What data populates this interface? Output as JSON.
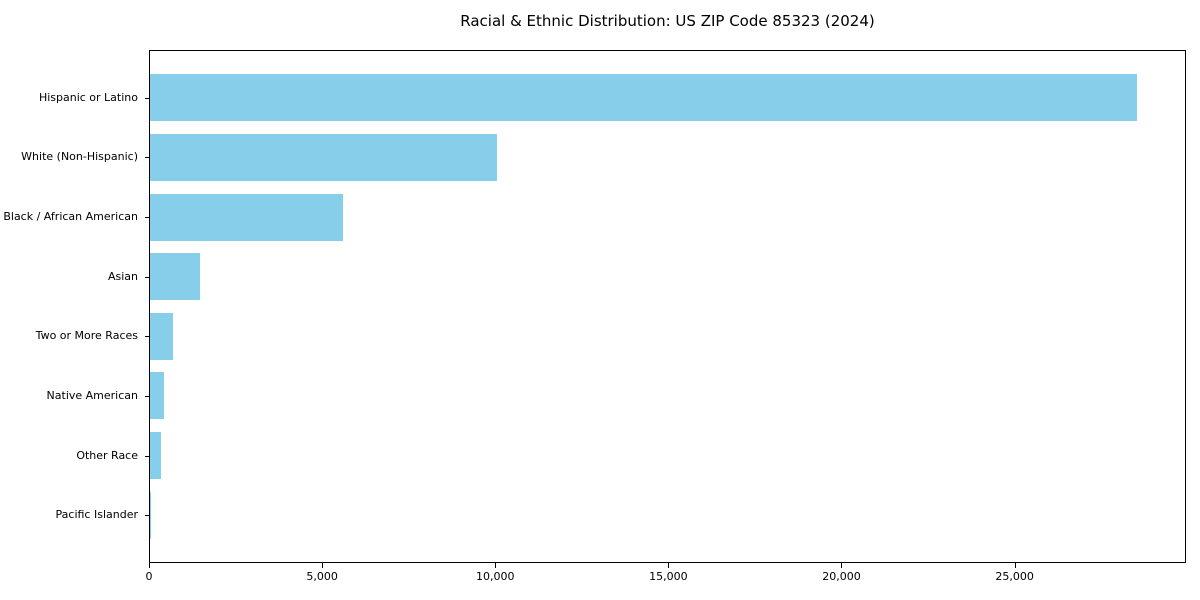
{
  "figure": {
    "title": "Racial & Ethnic Distribution: US ZIP Code 85323 (2024)"
  },
  "chart_data": {
    "type": "bar",
    "orientation": "horizontal",
    "title": "Racial & Ethnic Distribution: US ZIP Code 85323 (2024)",
    "categories": [
      "Hispanic or Latino",
      "White (Non-Hispanic)",
      "Black / African American",
      "Asian",
      "Two or More Races",
      "Native American",
      "Other Race",
      "Pacific Islander"
    ],
    "values": [
      28500,
      10030,
      5580,
      1430,
      665,
      400,
      330,
      30
    ],
    "xlabel": "",
    "ylabel": "",
    "xlim": [
      0,
      29950
    ],
    "xticks": [
      0,
      5000,
      10000,
      15000,
      20000,
      25000
    ],
    "xtick_labels": [
      "0",
      "5,000",
      "10,000",
      "15,000",
      "20,000",
      "25,000"
    ],
    "bar_color": "#87CEEB",
    "text_color": "#000000",
    "grid": false,
    "legend": null
  }
}
